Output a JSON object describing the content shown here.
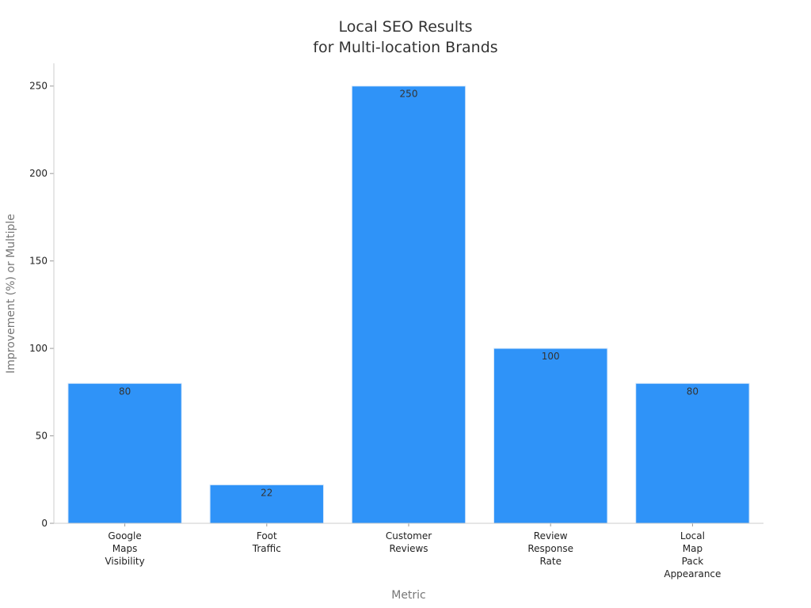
{
  "chart_data": {
    "type": "bar",
    "title_lines": [
      "Local SEO Results",
      "for Multi-location Brands"
    ],
    "xlabel": "Metric",
    "ylabel": "Improvement (%) or Multiple",
    "categories": [
      [
        "Google",
        "Maps",
        "Visibility"
      ],
      [
        "Foot",
        "Traffic"
      ],
      [
        "Customer",
        "Reviews"
      ],
      [
        "Review",
        "Response",
        "Rate"
      ],
      [
        "Local",
        "Map",
        "Pack",
        "Appearance"
      ]
    ],
    "values": [
      80,
      22,
      250,
      100,
      80
    ],
    "data_labels": [
      "80",
      "22",
      "250",
      "100",
      "80"
    ],
    "yticks": [
      0,
      50,
      100,
      150,
      200,
      250
    ],
    "ylim": [
      0,
      263
    ],
    "grid": false,
    "bar_color": "#2f93f8"
  }
}
